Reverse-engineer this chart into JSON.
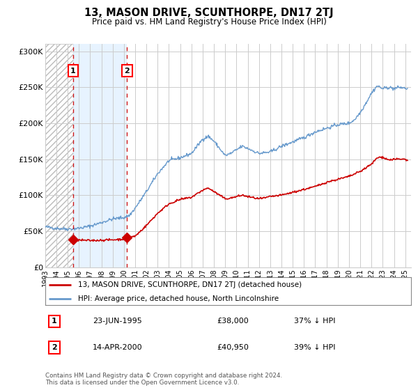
{
  "title": "13, MASON DRIVE, SCUNTHORPE, DN17 2TJ",
  "subtitle": "Price paid vs. HM Land Registry's House Price Index (HPI)",
  "legend_line1": "13, MASON DRIVE, SCUNTHORPE, DN17 2TJ (detached house)",
  "legend_line2": "HPI: Average price, detached house, North Lincolnshire",
  "footer": "Contains HM Land Registry data © Crown copyright and database right 2024.\nThis data is licensed under the Open Government Licence v3.0.",
  "sale1_date_num": 1995.477,
  "sale1_price": 38000,
  "sale1_label": "23-JUN-1995",
  "sale1_pct": "37% ↓ HPI",
  "sale2_date_num": 2000.278,
  "sale2_price": 40950,
  "sale2_label": "14-APR-2000",
  "sale2_pct": "39% ↓ HPI",
  "price_color": "#cc0000",
  "hpi_color": "#6699cc",
  "bg_color": "#ffffff",
  "grid_color": "#cccccc",
  "ylim": [
    0,
    310000
  ],
  "xlim_start": 1993.0,
  "xlim_end": 2025.5
}
